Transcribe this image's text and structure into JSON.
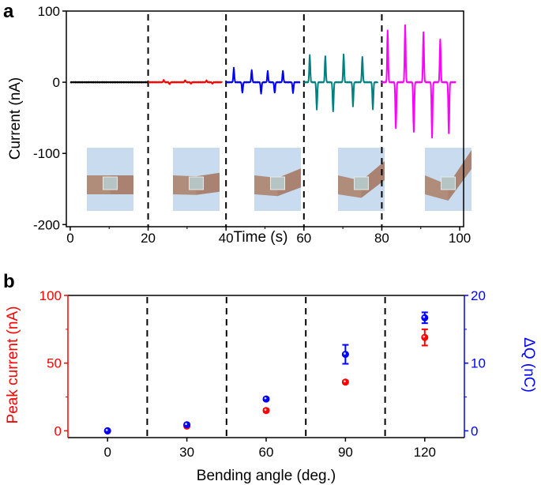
{
  "chart_data": [
    {
      "panel": "a",
      "type": "line",
      "xlabel": "Time (s)",
      "ylabel": "Current (nA)",
      "xlim": [
        -1,
        101
      ],
      "ylim": [
        -203,
        100
      ],
      "xticks": [
        0,
        20,
        40,
        60,
        80,
        100
      ],
      "yticks": [
        100,
        0,
        -100,
        -200
      ],
      "separators": [
        20,
        40,
        60,
        80
      ],
      "series": [
        {
          "name": "0 deg",
          "color": "#000000",
          "range": [
            0,
            20
          ],
          "spikes": []
        },
        {
          "name": "30 deg",
          "color": "#ff0000",
          "range": [
            20,
            39
          ],
          "spikes": [
            [
              24,
              3
            ],
            [
              25.5,
              -3
            ],
            [
              29.5,
              3
            ],
            [
              31,
              -2
            ],
            [
              35,
              2.5
            ],
            [
              36.5,
              -2
            ],
            [
              41,
              2
            ],
            [
              42.5,
              -2
            ],
            [
              46,
              2
            ],
            [
              47.5,
              -2
            ]
          ]
        },
        {
          "name": "60 deg",
          "color": "#0000ff",
          "range": [
            40,
            59
          ],
          "spikes": [
            [
              42,
              20
            ],
            [
              44.2,
              -15
            ],
            [
              46.6,
              17
            ],
            [
              49,
              -16
            ],
            [
              50.7,
              16
            ],
            [
              52.5,
              -15
            ],
            [
              54.6,
              16
            ],
            [
              57.2,
              -15
            ]
          ]
        },
        {
          "name": "90 deg",
          "color": "#008080",
          "range": [
            60,
            79
          ],
          "spikes": [
            [
              61.5,
              38
            ],
            [
              63.3,
              -38
            ],
            [
              65.5,
              37
            ],
            [
              67.5,
              -41
            ],
            [
              70.2,
              39
            ],
            [
              72.6,
              -34
            ],
            [
              75,
              36
            ],
            [
              77.7,
              -38
            ]
          ]
        },
        {
          "name": "120 deg",
          "color": "#ff00ff",
          "range": [
            80,
            99
          ],
          "spikes": [
            [
              81.5,
              73
            ],
            [
              83.6,
              -65
            ],
            [
              86,
              80
            ],
            [
              88.2,
              -70
            ],
            [
              90.7,
              70
            ],
            [
              92.9,
              -78
            ],
            [
              95,
              60
            ],
            [
              97.2,
              -72
            ]
          ]
        }
      ],
      "insets": [
        "0°",
        "30°",
        "60°",
        "90°",
        "120°"
      ]
    },
    {
      "panel": "b",
      "type": "scatter",
      "xlabel": "Bending angle (deg.)",
      "ylabel_left": "Peak current (nA)",
      "ylabel_right": "ΔQ (nC)",
      "xlim": [
        -15,
        135
      ],
      "ylim_left": [
        -5,
        100
      ],
      "ylim_right": [
        -1,
        20
      ],
      "xticks": [
        0,
        30,
        60,
        90,
        120
      ],
      "yticks_left": [
        0,
        50,
        100
      ],
      "yticks_right": [
        0,
        10,
        20
      ],
      "separators": [
        15,
        45,
        75,
        105
      ],
      "series": [
        {
          "name": "Peak current",
          "axis": "left",
          "color": "#ff0000",
          "x": [
            0,
            30,
            60,
            90,
            120
          ],
          "y": [
            0,
            3.5,
            15,
            36,
            69
          ],
          "err": [
            0,
            0.5,
            1,
            1,
            6
          ]
        },
        {
          "name": "ΔQ",
          "axis": "right",
          "color": "#0000ff",
          "x": [
            0,
            30,
            60,
            90,
            120
          ],
          "y": [
            0,
            0.9,
            4.7,
            11.3,
            16.7
          ],
          "err": [
            0,
            0.1,
            0.2,
            1.4,
            0.8
          ]
        }
      ]
    }
  ],
  "labels": {
    "panel_a": "a",
    "panel_b": "b"
  }
}
